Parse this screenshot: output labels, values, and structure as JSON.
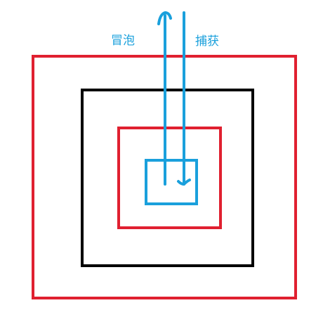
{
  "labels": {
    "bubble": "冒泡",
    "capture": "捕获"
  },
  "colors": {
    "outer_box": "#e02030",
    "middle_box": "#000000",
    "inner_red_box": "#e02030",
    "target_box": "#1aa0dc",
    "arrows": "#1aa0dc",
    "label_text": "#1aa0dc"
  },
  "boxes": [
    "outer-red-box",
    "black-box",
    "inner-red-box",
    "target-blue-box"
  ]
}
